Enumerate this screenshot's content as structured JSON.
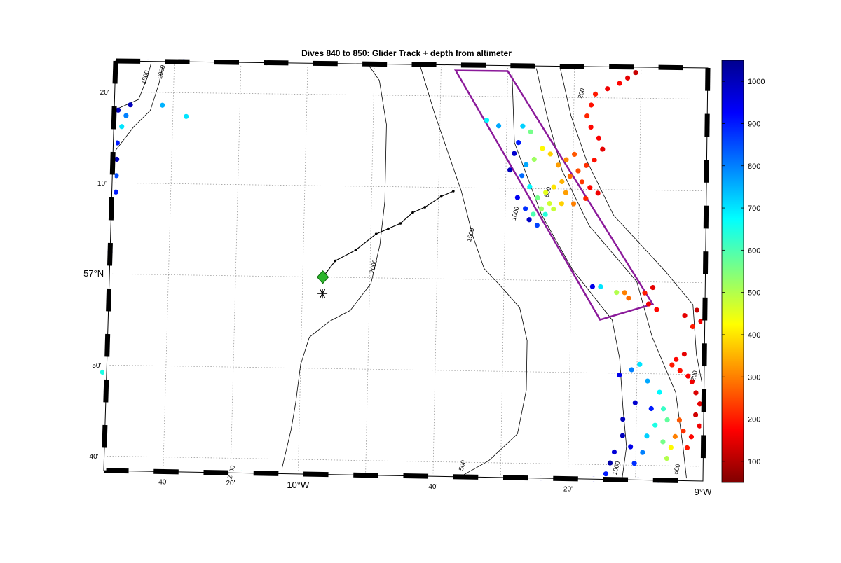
{
  "title": "Dives 840 to 850: Glider Track + depth from altimeter",
  "axes": {
    "lat_ticks": [
      {
        "label": "20'",
        "lat": 57.3333
      },
      {
        "label": "10'",
        "lat": 57.1667
      },
      {
        "label": "57°N",
        "lat": 57.0,
        "major": true
      },
      {
        "label": "50'",
        "lat": 56.8333
      },
      {
        "label": "40'",
        "lat": 56.6667
      }
    ],
    "lon_ticks": [
      {
        "label": "40'",
        "lon": -10.3333
      },
      {
        "label": "20'",
        "lon": -10.1667
      },
      {
        "label": "10°W",
        "lon": -10.0,
        "major": true
      },
      {
        "label": "40'",
        "lon": -9.6667
      },
      {
        "label": "20'",
        "lon": -9.3333
      },
      {
        "label": "9°W",
        "lon": -9.0,
        "major": true
      }
    ],
    "lat_range": [
      56.64,
      57.39
    ],
    "lon_range": [
      -10.48,
      -9.0
    ],
    "grid": true
  },
  "contours": [
    {
      "level": "2000",
      "points": [
        [
          -10.48,
          57.22
        ],
        [
          -10.43,
          57.27
        ],
        [
          -10.39,
          57.3
        ],
        [
          -10.37,
          57.35
        ],
        [
          -10.36,
          57.39
        ]
      ]
    },
    {
      "level": "1500",
      "points": [
        [
          -10.48,
          57.3
        ],
        [
          -10.42,
          57.32
        ],
        [
          -10.4,
          57.36
        ],
        [
          -10.39,
          57.39
        ]
      ]
    },
    {
      "level": "2000",
      "points": [
        [
          -9.85,
          57.39
        ],
        [
          -9.82,
          57.36
        ],
        [
          -9.8,
          57.28
        ],
        [
          -9.8,
          57.14
        ],
        [
          -9.81,
          57.06
        ],
        [
          -9.83,
          56.99
        ],
        [
          -9.88,
          56.94
        ],
        [
          -9.93,
          56.92
        ],
        [
          -9.98,
          56.89
        ],
        [
          -10.0,
          56.84
        ],
        [
          -10.01,
          56.77
        ],
        [
          -10.02,
          56.72
        ],
        [
          -10.04,
          56.65
        ]
      ]
    },
    {
      "level": "1500",
      "points": [
        [
          -9.72,
          57.39
        ],
        [
          -9.68,
          57.3
        ],
        [
          -9.61,
          57.16
        ],
        [
          -9.58,
          57.08
        ],
        [
          -9.55,
          57.02
        ],
        [
          -9.51,
          56.99
        ],
        [
          -9.46,
          56.95
        ],
        [
          -9.44,
          56.89
        ],
        [
          -9.44,
          56.8
        ],
        [
          -9.46,
          56.72
        ],
        [
          -9.53,
          56.67
        ],
        [
          -9.6,
          56.64
        ]
      ]
    },
    {
      "level": "1000",
      "points": [
        [
          -9.49,
          57.39
        ],
        [
          -9.48,
          57.25
        ],
        [
          -9.41,
          57.12
        ],
        [
          -9.33,
          57.02
        ],
        [
          -9.23,
          56.93
        ],
        [
          -9.21,
          56.86
        ],
        [
          -9.2,
          56.77
        ],
        [
          -9.19,
          56.7
        ],
        [
          -9.2,
          56.64
        ]
      ]
    },
    {
      "level": "500",
      "points": [
        [
          -9.43,
          57.39
        ],
        [
          -9.4,
          57.3
        ],
        [
          -9.36,
          57.2
        ],
        [
          -9.29,
          57.1
        ],
        [
          -9.17,
          57.0
        ],
        [
          -9.13,
          56.9
        ],
        [
          -9.07,
          56.8
        ],
        [
          -9.05,
          56.7
        ],
        [
          -9.04,
          56.64
        ]
      ]
    },
    {
      "level": "200",
      "points": [
        [
          -9.37,
          57.39
        ],
        [
          -9.34,
          57.3
        ],
        [
          -9.3,
          57.22
        ],
        [
          -9.23,
          57.12
        ],
        [
          -9.1,
          57.02
        ],
        [
          -9.03,
          56.96
        ],
        [
          -9.02,
          56.87
        ],
        [
          -9.0,
          56.8
        ]
      ]
    }
  ],
  "contour_labels": [
    {
      "text": "1500",
      "lon": -10.4,
      "lat": 57.36
    },
    {
      "text": "2000",
      "lon": -10.36,
      "lat": 57.37
    },
    {
      "text": "2000",
      "lon": -9.82,
      "lat": 57.02
    },
    {
      "text": "1500",
      "lon": -9.58,
      "lat": 57.08
    },
    {
      "text": "1000",
      "lon": -9.47,
      "lat": 57.12
    },
    {
      "text": "500",
      "lon": -9.39,
      "lat": 57.16
    },
    {
      "text": "200",
      "lon": -9.31,
      "lat": 57.34
    },
    {
      "text": "200",
      "lon": -9.02,
      "lat": 56.83
    },
    {
      "text": "2000",
      "lon": -10.16,
      "lat": 56.64
    },
    {
      "text": "500",
      "lon": -9.59,
      "lat": 56.66
    },
    {
      "text": "1000",
      "lon": -9.21,
      "lat": 56.66
    },
    {
      "text": "500",
      "lon": -9.06,
      "lat": 56.66
    }
  ],
  "glider_track": [
    [
      -9.95,
      57.0
    ],
    [
      -9.92,
      57.03
    ],
    [
      -9.87,
      57.05
    ],
    [
      -9.82,
      57.08
    ],
    [
      -9.79,
      57.09
    ],
    [
      -9.76,
      57.1
    ],
    [
      -9.73,
      57.12
    ],
    [
      -9.7,
      57.13
    ],
    [
      -9.66,
      57.15
    ],
    [
      -9.63,
      57.16
    ]
  ],
  "glider_start": {
    "lon": -9.95,
    "lat": 57.0
  },
  "star_marker": {
    "lon": -9.95,
    "lat": 56.97
  },
  "survey_box": [
    [
      -9.63,
      57.38
    ],
    [
      -9.5,
      57.38
    ],
    [
      -9.13,
      56.96
    ],
    [
      -9.26,
      56.93
    ]
  ],
  "colorbar": {
    "ticks": [
      1000,
      900,
      800,
      700,
      600,
      500,
      400,
      300,
      200,
      100
    ],
    "min": 50,
    "max": 1050
  },
  "depth_points": [
    {
      "lon": -9.2,
      "lat": 57.37,
      "d": 150
    },
    {
      "lon": -9.18,
      "lat": 57.38,
      "d": 120
    },
    {
      "lon": -9.22,
      "lat": 57.36,
      "d": 180
    },
    {
      "lon": -9.25,
      "lat": 57.35,
      "d": 160
    },
    {
      "lon": -9.28,
      "lat": 57.34,
      "d": 200
    },
    {
      "lon": -9.29,
      "lat": 57.32,
      "d": 190
    },
    {
      "lon": -9.3,
      "lat": 57.3,
      "d": 210
    },
    {
      "lon": -9.29,
      "lat": 57.28,
      "d": 180
    },
    {
      "lon": -9.27,
      "lat": 57.26,
      "d": 170
    },
    {
      "lon": -9.26,
      "lat": 57.24,
      "d": 150
    },
    {
      "lon": -9.28,
      "lat": 57.22,
      "d": 190
    },
    {
      "lon": -9.3,
      "lat": 57.21,
      "d": 220
    },
    {
      "lon": -9.32,
      "lat": 57.2,
      "d": 250
    },
    {
      "lon": -9.31,
      "lat": 57.18,
      "d": 230
    },
    {
      "lon": -9.29,
      "lat": 57.17,
      "d": 180
    },
    {
      "lon": -9.27,
      "lat": 57.16,
      "d": 160
    },
    {
      "lon": -9.3,
      "lat": 57.15,
      "d": 210
    },
    {
      "lon": -9.33,
      "lat": 57.14,
      "d": 300
    },
    {
      "lon": -9.35,
      "lat": 57.16,
      "d": 330
    },
    {
      "lon": -9.34,
      "lat": 57.19,
      "d": 280
    },
    {
      "lon": -9.36,
      "lat": 57.18,
      "d": 350
    },
    {
      "lon": -9.38,
      "lat": 57.17,
      "d": 400
    },
    {
      "lon": -9.4,
      "lat": 57.16,
      "d": 450
    },
    {
      "lon": -9.39,
      "lat": 57.14,
      "d": 470
    },
    {
      "lon": -9.41,
      "lat": 57.13,
      "d": 520
    },
    {
      "lon": -9.43,
      "lat": 57.12,
      "d": 600
    },
    {
      "lon": -9.42,
      "lat": 57.15,
      "d": 560
    },
    {
      "lon": -9.44,
      "lat": 57.17,
      "d": 680
    },
    {
      "lon": -9.46,
      "lat": 57.19,
      "d": 820
    },
    {
      "lon": -9.45,
      "lat": 57.21,
      "d": 760
    },
    {
      "lon": -9.43,
      "lat": 57.22,
      "d": 520
    },
    {
      "lon": -9.41,
      "lat": 57.24,
      "d": 420
    },
    {
      "lon": -9.39,
      "lat": 57.23,
      "d": 380
    },
    {
      "lon": -9.37,
      "lat": 57.21,
      "d": 330
    },
    {
      "lon": -9.35,
      "lat": 57.22,
      "d": 310
    },
    {
      "lon": -9.33,
      "lat": 57.23,
      "d": 260
    },
    {
      "lon": -9.47,
      "lat": 57.25,
      "d": 900
    },
    {
      "lon": -9.46,
      "lat": 57.28,
      "d": 720
    },
    {
      "lon": -9.44,
      "lat": 57.27,
      "d": 560
    },
    {
      "lon": -9.48,
      "lat": 57.23,
      "d": 980
    },
    {
      "lon": -9.47,
      "lat": 57.15,
      "d": 940
    },
    {
      "lon": -9.45,
      "lat": 57.13,
      "d": 880
    },
    {
      "lon": -9.44,
      "lat": 57.11,
      "d": 990
    },
    {
      "lon": -9.42,
      "lat": 57.1,
      "d": 860
    },
    {
      "lon": -9.4,
      "lat": 57.12,
      "d": 640
    },
    {
      "lon": -9.38,
      "lat": 57.13,
      "d": 480
    },
    {
      "lon": -9.36,
      "lat": 57.14,
      "d": 380
    },
    {
      "lon": -9.52,
      "lat": 57.28,
      "d": 760
    },
    {
      "lon": -9.55,
      "lat": 57.29,
      "d": 680
    },
    {
      "lon": -9.49,
      "lat": 57.2,
      "d": 1000
    },
    {
      "lon": -9.28,
      "lat": 56.99,
      "d": 950
    },
    {
      "lon": -9.26,
      "lat": 56.99,
      "d": 700
    },
    {
      "lon": -9.22,
      "lat": 56.98,
      "d": 500
    },
    {
      "lon": -9.2,
      "lat": 56.98,
      "d": 300
    },
    {
      "lon": -9.19,
      "lat": 56.97,
      "d": 280
    },
    {
      "lon": -9.15,
      "lat": 56.98,
      "d": 200
    },
    {
      "lon": -9.13,
      "lat": 56.99,
      "d": 150
    },
    {
      "lon": -9.14,
      "lat": 56.96,
      "d": 160
    },
    {
      "lon": -9.12,
      "lat": 56.95,
      "d": 180
    },
    {
      "lon": -9.05,
      "lat": 56.94,
      "d": 150
    },
    {
      "lon": -9.02,
      "lat": 56.95,
      "d": 120
    },
    {
      "lon": -9.01,
      "lat": 56.93,
      "d": 160
    },
    {
      "lon": -9.03,
      "lat": 56.92,
      "d": 200
    },
    {
      "lon": -9.07,
      "lat": 56.86,
      "d": 180
    },
    {
      "lon": -9.05,
      "lat": 56.87,
      "d": 150
    },
    {
      "lon": -9.08,
      "lat": 56.85,
      "d": 200
    },
    {
      "lon": -9.06,
      "lat": 56.84,
      "d": 190
    },
    {
      "lon": -9.04,
      "lat": 56.83,
      "d": 170
    },
    {
      "lon": -9.03,
      "lat": 56.82,
      "d": 160
    },
    {
      "lon": -9.02,
      "lat": 56.8,
      "d": 140
    },
    {
      "lon": -9.01,
      "lat": 56.78,
      "d": 150
    },
    {
      "lon": -9.02,
      "lat": 56.76,
      "d": 130
    },
    {
      "lon": -9.01,
      "lat": 56.74,
      "d": 160
    },
    {
      "lon": -9.03,
      "lat": 56.72,
      "d": 180
    },
    {
      "lon": -9.04,
      "lat": 56.7,
      "d": 200
    },
    {
      "lon": -9.05,
      "lat": 56.73,
      "d": 220
    },
    {
      "lon": -9.06,
      "lat": 56.75,
      "d": 260
    },
    {
      "lon": -9.07,
      "lat": 56.72,
      "d": 300
    },
    {
      "lon": -9.08,
      "lat": 56.7,
      "d": 420
    },
    {
      "lon": -9.09,
      "lat": 56.68,
      "d": 500
    },
    {
      "lon": -9.1,
      "lat": 56.71,
      "d": 560
    },
    {
      "lon": -9.12,
      "lat": 56.74,
      "d": 650
    },
    {
      "lon": -9.14,
      "lat": 56.72,
      "d": 720
    },
    {
      "lon": -9.15,
      "lat": 56.69,
      "d": 800
    },
    {
      "lon": -9.17,
      "lat": 56.67,
      "d": 880
    },
    {
      "lon": -9.18,
      "lat": 56.7,
      "d": 950
    },
    {
      "lon": -9.2,
      "lat": 56.72,
      "d": 1000
    },
    {
      "lon": -9.22,
      "lat": 56.69,
      "d": 970
    },
    {
      "lon": -9.23,
      "lat": 56.67,
      "d": 1020
    },
    {
      "lon": -9.24,
      "lat": 56.65,
      "d": 900
    },
    {
      "lon": -9.21,
      "lat": 56.83,
      "d": 950
    },
    {
      "lon": -9.18,
      "lat": 56.84,
      "d": 800
    },
    {
      "lon": -9.16,
      "lat": 56.85,
      "d": 700
    },
    {
      "lon": -9.14,
      "lat": 56.82,
      "d": 760
    },
    {
      "lon": -9.11,
      "lat": 56.8,
      "d": 680
    },
    {
      "lon": -9.1,
      "lat": 56.77,
      "d": 620
    },
    {
      "lon": -9.09,
      "lat": 56.75,
      "d": 580
    },
    {
      "lon": -9.13,
      "lat": 56.77,
      "d": 900
    },
    {
      "lon": -9.17,
      "lat": 56.78,
      "d": 980
    },
    {
      "lon": -9.2,
      "lat": 56.75,
      "d": 1000
    },
    {
      "lon": -9.11,
      "lat": 56.64,
      "d": 850
    },
    {
      "lon": -9.16,
      "lat": 56.64,
      "d": 1000
    },
    {
      "lon": -9.27,
      "lat": 56.64,
      "d": 950
    },
    {
      "lon": -9.4,
      "lat": 56.64,
      "d": 1000
    },
    {
      "lon": -10.47,
      "lat": 57.3,
      "d": 1000
    },
    {
      "lon": -10.46,
      "lat": 57.27,
      "d": 700
    },
    {
      "lon": -10.47,
      "lat": 57.24,
      "d": 900
    },
    {
      "lon": -10.47,
      "lat": 57.21,
      "d": 1000
    },
    {
      "lon": -10.47,
      "lat": 57.18,
      "d": 850
    },
    {
      "lon": -10.47,
      "lat": 57.15,
      "d": 900
    },
    {
      "lon": -10.48,
      "lat": 57.12,
      "d": 1000
    },
    {
      "lon": -10.48,
      "lat": 57.08,
      "d": 850
    },
    {
      "lon": -10.48,
      "lat": 57.04,
      "d": 950
    },
    {
      "lon": -10.44,
      "lat": 57.31,
      "d": 1000
    },
    {
      "lon": -10.36,
      "lat": 57.31,
      "d": 750
    },
    {
      "lon": -10.3,
      "lat": 57.29,
      "d": 700
    },
    {
      "lon": -10.45,
      "lat": 57.29,
      "d": 800
    },
    {
      "lon": -10.49,
      "lat": 56.82,
      "d": 650
    },
    {
      "lon": -10.4,
      "lat": 57.39,
      "d": 1000
    },
    {
      "lon": -10.31,
      "lat": 57.39,
      "d": 900
    },
    {
      "lon": -10.14,
      "lat": 56.64,
      "d": 650
    },
    {
      "lon": -10.19,
      "lat": 56.64,
      "d": 800
    }
  ]
}
